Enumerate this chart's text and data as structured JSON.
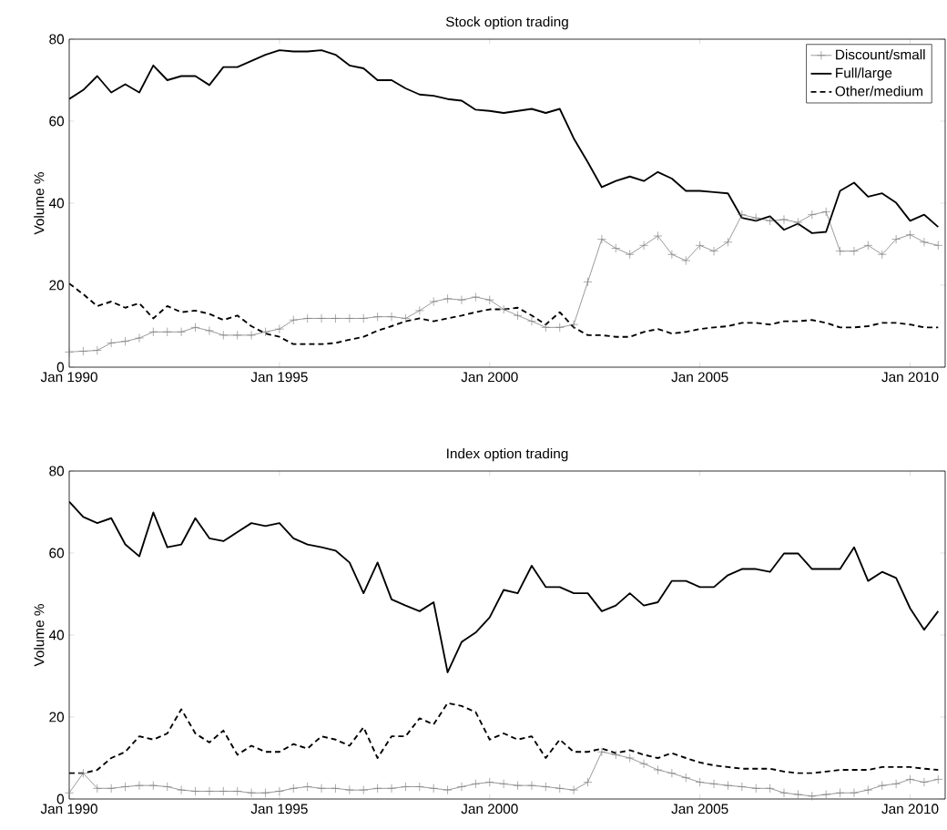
{
  "chart_data": [
    {
      "type": "line",
      "title": "Stock option trading",
      "ylabel": "Volume %",
      "x": [
        "1990-01",
        "1990-05",
        "1990-09",
        "1991-01",
        "1991-05",
        "1991-09",
        "1992-01",
        "1992-05",
        "1992-09",
        "1993-01",
        "1993-05",
        "1993-09",
        "1994-01",
        "1994-05",
        "1994-09",
        "1995-01",
        "1995-05",
        "1995-09",
        "1996-01",
        "1996-05",
        "1996-09",
        "1997-01",
        "1997-05",
        "1997-09",
        "1998-01",
        "1998-05",
        "1998-09",
        "1999-01",
        "1999-05",
        "1999-09",
        "2000-01",
        "2000-05",
        "2000-09",
        "2001-01",
        "2001-05",
        "2001-09",
        "2002-01",
        "2002-05",
        "2002-09",
        "2003-01",
        "2003-05",
        "2003-09",
        "2004-01",
        "2004-05",
        "2004-09",
        "2005-01",
        "2005-05",
        "2005-09",
        "2006-01",
        "2006-05",
        "2006-09",
        "2007-01",
        "2007-05",
        "2007-09",
        "2008-01",
        "2008-05",
        "2008-09",
        "2009-01",
        "2009-05",
        "2009-09",
        "2010-01",
        "2010-05",
        "2010-09"
      ],
      "xlim": [
        "1990-01",
        "2010-11"
      ],
      "xticks": [
        {
          "value": "1990-01",
          "label": "Jan 1990"
        },
        {
          "value": "1995-01",
          "label": "Jan 1995"
        },
        {
          "value": "2000-01",
          "label": "Jan 2000"
        },
        {
          "value": "2005-01",
          "label": "Jan 2005"
        },
        {
          "value": "2010-01",
          "label": "Jan 2010"
        }
      ],
      "ylim": [
        0,
        80
      ],
      "yticks": [
        0,
        20,
        40,
        60,
        80
      ],
      "legend": "top right",
      "series": [
        {
          "name": "Discount/small",
          "color": "#808080",
          "marker": "cross",
          "line_style": "solid",
          "values": [
            3.7,
            3.9,
            4.1,
            5.9,
            6.3,
            7.1,
            8.6,
            8.6,
            8.6,
            9.7,
            8.9,
            7.8,
            7.8,
            7.8,
            8.6,
            9.3,
            11.5,
            11.9,
            11.9,
            11.9,
            11.9,
            11.9,
            12.3,
            12.3,
            11.9,
            13.8,
            16,
            16.7,
            16.4,
            17.1,
            16.4,
            14.1,
            12.6,
            11.2,
            9.7,
            9.7,
            10.4,
            20.8,
            31.2,
            29,
            27.5,
            29.7,
            32,
            27.5,
            26,
            29.7,
            28.3,
            30.5,
            37.2,
            36.4,
            35.7,
            36,
            35.3,
            37.2,
            37.9,
            28.3,
            28.3,
            29.7,
            27.5,
            31.2,
            32.3,
            30.5,
            29.7
          ]
        },
        {
          "name": "Full/large",
          "color": "#000000",
          "marker": "none",
          "line_style": "solid",
          "values": [
            65.4,
            67.6,
            71,
            67,
            69,
            67,
            73.6,
            70,
            71,
            71,
            68.8,
            73.2,
            73.2,
            74.7,
            76.2,
            77.3,
            77,
            77,
            77.3,
            76.2,
            73.6,
            72.9,
            70,
            70,
            68,
            66.5,
            66.2,
            65.4,
            65,
            62.8,
            62.5,
            62,
            62.5,
            63,
            62,
            63,
            55.8,
            50,
            43.9,
            45.4,
            46.5,
            45.4,
            47.6,
            46,
            43,
            43,
            42.7,
            42.4,
            36.4,
            35.7,
            36.8,
            33.5,
            35,
            32.7,
            33,
            43,
            45,
            41.6,
            42.4,
            40.1,
            35.7,
            37.2,
            34.2
          ]
        },
        {
          "name": "Other/medium",
          "color": "#000000",
          "marker": "none",
          "line_style": "dashed",
          "values": [
            20.4,
            17.8,
            14.9,
            16,
            14.5,
            15.6,
            11.9,
            14.9,
            13.4,
            13.8,
            13,
            11.5,
            12.6,
            10,
            8.2,
            7.4,
            5.6,
            5.6,
            5.6,
            5.9,
            6.7,
            7.4,
            8.9,
            10,
            11.2,
            11.9,
            11.2,
            11.9,
            12.6,
            13.4,
            14.1,
            14.1,
            14.5,
            12.6,
            10.4,
            13.4,
            9.7,
            7.8,
            7.8,
            7.4,
            7.4,
            8.6,
            9.3,
            8.2,
            8.6,
            9.3,
            9.7,
            10,
            10.8,
            10.8,
            10.4,
            11.2,
            11.2,
            11.5,
            10.8,
            9.7,
            9.7,
            10,
            10.8,
            10.8,
            10.4,
            9.7,
            9.7
          ]
        }
      ]
    },
    {
      "type": "line",
      "title": "Index option trading",
      "ylabel": "Volume %",
      "x": [
        "1990-01",
        "1990-05",
        "1990-09",
        "1991-01",
        "1991-05",
        "1991-09",
        "1992-01",
        "1992-05",
        "1992-09",
        "1993-01",
        "1993-05",
        "1993-09",
        "1994-01",
        "1994-05",
        "1994-09",
        "1995-01",
        "1995-05",
        "1995-09",
        "1996-01",
        "1996-05",
        "1996-09",
        "1997-01",
        "1997-05",
        "1997-09",
        "1998-01",
        "1998-05",
        "1998-09",
        "1999-01",
        "1999-05",
        "1999-09",
        "2000-01",
        "2000-05",
        "2000-09",
        "2001-01",
        "2001-05",
        "2001-09",
        "2002-01",
        "2002-05",
        "2002-09",
        "2003-01",
        "2003-05",
        "2003-09",
        "2004-01",
        "2004-05",
        "2004-09",
        "2005-01",
        "2005-05",
        "2005-09",
        "2006-01",
        "2006-05",
        "2006-09",
        "2007-01",
        "2007-05",
        "2007-09",
        "2008-01",
        "2008-05",
        "2008-09",
        "2009-01",
        "2009-05",
        "2009-09",
        "2010-01",
        "2010-05",
        "2010-09"
      ],
      "xlim": [
        "1990-01",
        "2010-11"
      ],
      "xticks": [
        {
          "value": "1990-01",
          "label": "Jan 1990"
        },
        {
          "value": "1995-01",
          "label": "Jan 1995"
        },
        {
          "value": "2000-01",
          "label": "Jan 2000"
        },
        {
          "value": "2005-01",
          "label": "Jan 2005"
        },
        {
          "value": "2010-01",
          "label": "Jan 2010"
        }
      ],
      "ylim": [
        0,
        80
      ],
      "yticks": [
        0,
        20,
        40,
        60,
        80
      ],
      "series": [
        {
          "color": "#808080",
          "marker": "cross",
          "line_style": "solid",
          "values": [
            1.5,
            6.3,
            2.6,
            2.6,
            3,
            3.3,
            3.3,
            3,
            2.2,
            1.9,
            1.9,
            1.9,
            1.9,
            1.5,
            1.5,
            1.9,
            2.6,
            3,
            2.6,
            2.6,
            2.2,
            2.2,
            2.6,
            2.6,
            3,
            3,
            2.6,
            2.2,
            3,
            3.7,
            4.1,
            3.7,
            3.3,
            3.3,
            3,
            2.6,
            2.2,
            4.1,
            11.5,
            10.8,
            10,
            8.6,
            7.1,
            6.3,
            5.2,
            4.1,
            3.7,
            3.3,
            3,
            2.6,
            2.6,
            1.5,
            1.1,
            0.7,
            1.1,
            1.5,
            1.5,
            2.2,
            3.3,
            3.7,
            4.8,
            4.1,
            4.8
          ]
        },
        {
          "color": "#000000",
          "marker": "none",
          "line_style": "solid",
          "values": [
            72.5,
            68.8,
            67.3,
            68.5,
            62.1,
            59.2,
            69.9,
            61.4,
            62.1,
            68.5,
            63.6,
            62.9,
            65.1,
            67.3,
            66.6,
            67.3,
            63.6,
            62.1,
            61.4,
            60.6,
            57.7,
            50.2,
            57.7,
            48.7,
            47.2,
            45.8,
            48,
            30.9,
            38.3,
            40.6,
            44.3,
            51,
            50.2,
            56.9,
            51.7,
            51.7,
            50.2,
            50.2,
            45.8,
            47.2,
            50.2,
            47.2,
            48,
            53.2,
            53.2,
            51.7,
            51.7,
            54.6,
            56.1,
            56.1,
            55.4,
            59.9,
            59.9,
            56.1,
            56.1,
            56.1,
            61.4,
            53.2,
            55.4,
            53.9,
            46.5,
            41.3,
            45.8
          ]
        },
        {
          "color": "#000000",
          "marker": "none",
          "line_style": "dashed",
          "values": [
            6.3,
            6.3,
            7.1,
            10,
            11.5,
            15.3,
            14.5,
            16,
            21.9,
            16,
            13.8,
            16.7,
            10.8,
            13,
            11.5,
            11.5,
            13.4,
            12.3,
            15.3,
            14.5,
            13,
            17.5,
            10,
            15.3,
            15.3,
            19.7,
            18.2,
            23.4,
            22.7,
            21.2,
            14.5,
            16,
            14.5,
            15.3,
            10,
            14.5,
            11.5,
            11.5,
            12.3,
            11.2,
            11.9,
            10.8,
            10,
            11.2,
            10,
            8.9,
            8.2,
            7.8,
            7.4,
            7.4,
            7.4,
            6.7,
            6.3,
            6.3,
            6.7,
            7.1,
            7.1,
            7.1,
            7.8,
            7.8,
            7.8,
            7.4,
            7.1
          ]
        }
      ]
    }
  ]
}
